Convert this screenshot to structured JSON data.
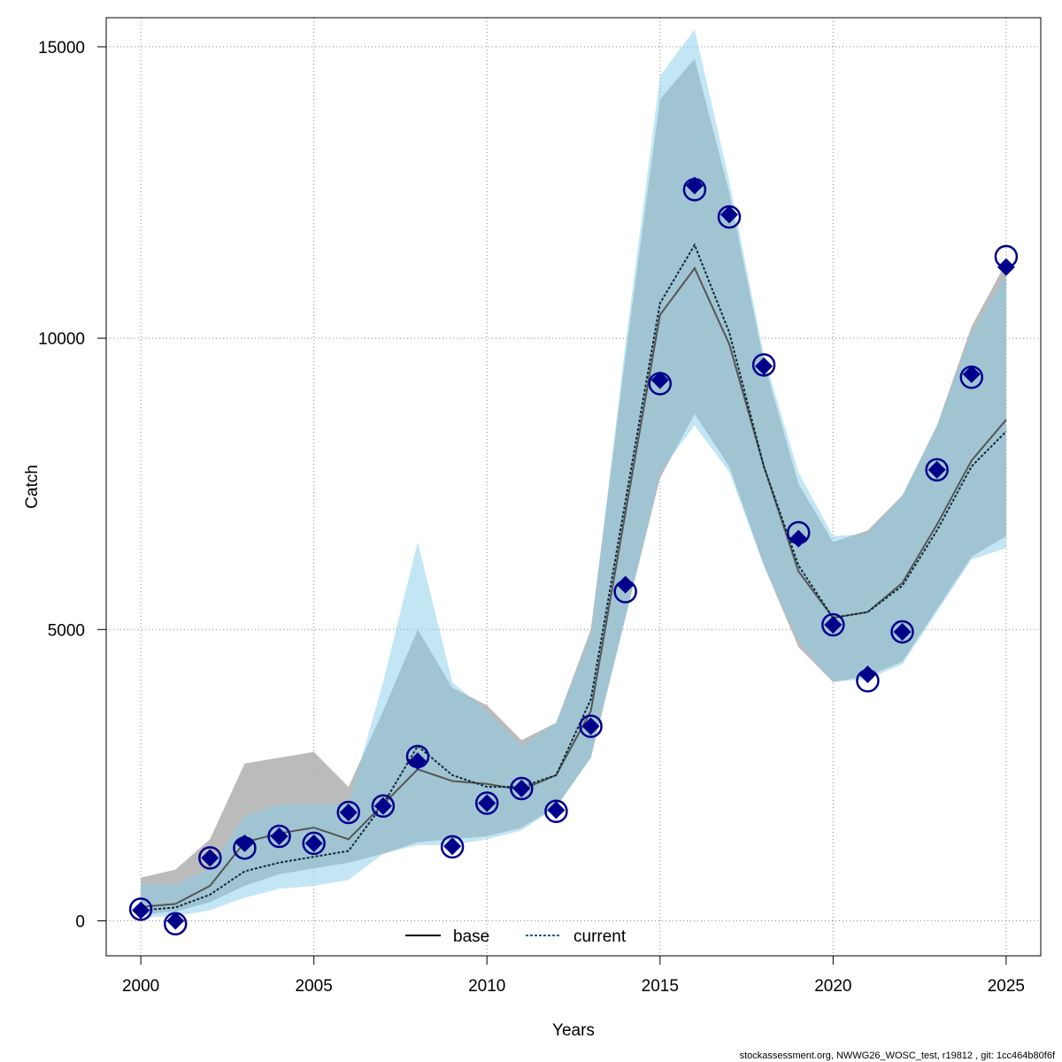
{
  "chart_data": {
    "type": "line",
    "xlabel": "Years",
    "ylabel": "Catch",
    "xlim": [
      1999,
      2026
    ],
    "ylim": [
      -600,
      15500
    ],
    "x_ticks": [
      2000,
      2005,
      2010,
      2015,
      2020,
      2025
    ],
    "y_ticks": [
      0,
      5000,
      10000,
      15000
    ],
    "grid": true,
    "legend_position": "bottom",
    "x": [
      2000,
      2001,
      2002,
      2003,
      2004,
      2005,
      2006,
      2007,
      2008,
      2009,
      2010,
      2011,
      2012,
      2013,
      2014,
      2015,
      2016,
      2017,
      2018,
      2019,
      2020,
      2021,
      2022,
      2023,
      2024,
      2025
    ],
    "series": [
      {
        "name": "base",
        "line_color": "#000000",
        "band_color": "#aaaaaa",
        "estimate": [
          240,
          290,
          600,
          1350,
          1500,
          1600,
          1400,
          2000,
          2600,
          2400,
          2350,
          2250,
          2500,
          3600,
          7000,
          10400,
          11200,
          9900,
          7800,
          6000,
          5200,
          5300,
          5800,
          6800,
          7900,
          8600
        ],
        "lower": [
          110,
          160,
          320,
          600,
          800,
          900,
          1000,
          1150,
          1350,
          1400,
          1450,
          1600,
          1950,
          2800,
          5200,
          7600,
          8700,
          7800,
          6100,
          4700,
          4100,
          4200,
          4450,
          5350,
          6250,
          6600
        ],
        "upper": [
          740,
          880,
          1400,
          2700,
          2800,
          2900,
          2300,
          3600,
          5000,
          4000,
          3700,
          3100,
          3400,
          5000,
          9700,
          14100,
          14800,
          12500,
          9600,
          7500,
          6500,
          6700,
          7300,
          8500,
          10200,
          11300
        ]
      },
      {
        "name": "current",
        "line_color": "#1f5f78",
        "band_color": "#87ceeb",
        "estimate": [
          180,
          230,
          450,
          850,
          1000,
          1100,
          1200,
          2000,
          3000,
          2500,
          2300,
          2300,
          2500,
          3800,
          7200,
          10600,
          11600,
          10100,
          7800,
          6100,
          5200,
          5300,
          5750,
          6700,
          7800,
          8400
        ],
        "lower": [
          60,
          80,
          180,
          400,
          550,
          600,
          700,
          1150,
          1300,
          1300,
          1400,
          1550,
          1950,
          2800,
          5200,
          7700,
          8500,
          7700,
          6100,
          4800,
          4100,
          4150,
          4400,
          5300,
          6200,
          6400
        ],
        "upper": [
          640,
          620,
          900,
          1800,
          2000,
          2000,
          2000,
          4100,
          6500,
          4100,
          3600,
          3000,
          3400,
          4900,
          9900,
          14500,
          15300,
          12700,
          9700,
          7700,
          6600,
          6650,
          7300,
          8500,
          10100,
          11100
        ]
      }
    ],
    "observations": {
      "circles": [
        200,
        -50,
        1080,
        1250,
        1450,
        1330,
        1860,
        1970,
        2820,
        1270,
        2020,
        2270,
        1880,
        3340,
        5650,
        9220,
        12550,
        12080,
        9540,
        6660,
        5080,
        4120,
        4960,
        7740,
        9330,
        11400
      ],
      "diamonds": [
        180,
        0,
        1080,
        1330,
        1450,
        1330,
        1860,
        1970,
        2740,
        1280,
        2020,
        2270,
        1900,
        3340,
        5770,
        9280,
        12620,
        12120,
        9520,
        6560,
        5080,
        4230,
        4960,
        7740,
        9380,
        11220
      ],
      "color": "#00008b"
    },
    "footer": "stockassessment.org, NWWG26_WOSC_test, r19812 , git: 1cc464b80f6f"
  }
}
